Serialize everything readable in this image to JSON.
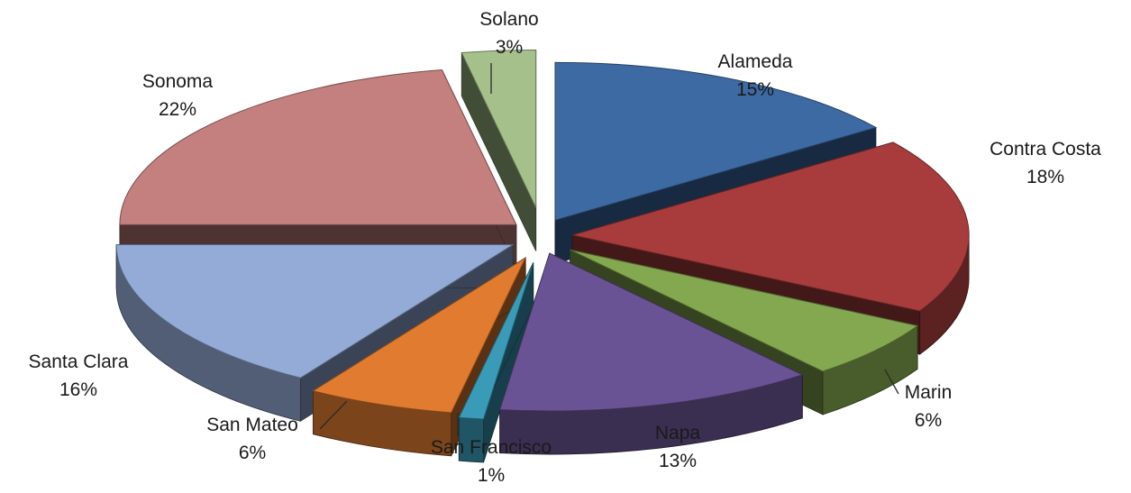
{
  "chart_data": {
    "type": "pie",
    "title": "",
    "slices": [
      {
        "label": "Alameda",
        "value": 15,
        "value_label": "15%",
        "color": "#3d6aa3"
      },
      {
        "label": "Contra Costa",
        "value": 18,
        "value_label": "18%",
        "color": "#a83c3c"
      },
      {
        "label": "Marin",
        "value": 6,
        "value_label": "6%",
        "color": "#84a850"
      },
      {
        "label": "Napa",
        "value": 13,
        "value_label": "13%",
        "color": "#6a5394"
      },
      {
        "label": "San Francisco",
        "value": 1,
        "value_label": "1%",
        "color": "#3a9bb8"
      },
      {
        "label": "San Mateo",
        "value": 6,
        "value_label": "6%",
        "color": "#e07b2f"
      },
      {
        "label": "Santa Clara",
        "value": 16,
        "value_label": "16%",
        "color": "#93abd6"
      },
      {
        "label": "Sonoma",
        "value": 22,
        "value_label": "22%",
        "color": "#c47f7f"
      },
      {
        "label": "Solano",
        "value": 3,
        "value_label": "3%",
        "color": "#a6c08c"
      }
    ],
    "style": "3d-exploded",
    "legend": "none"
  }
}
